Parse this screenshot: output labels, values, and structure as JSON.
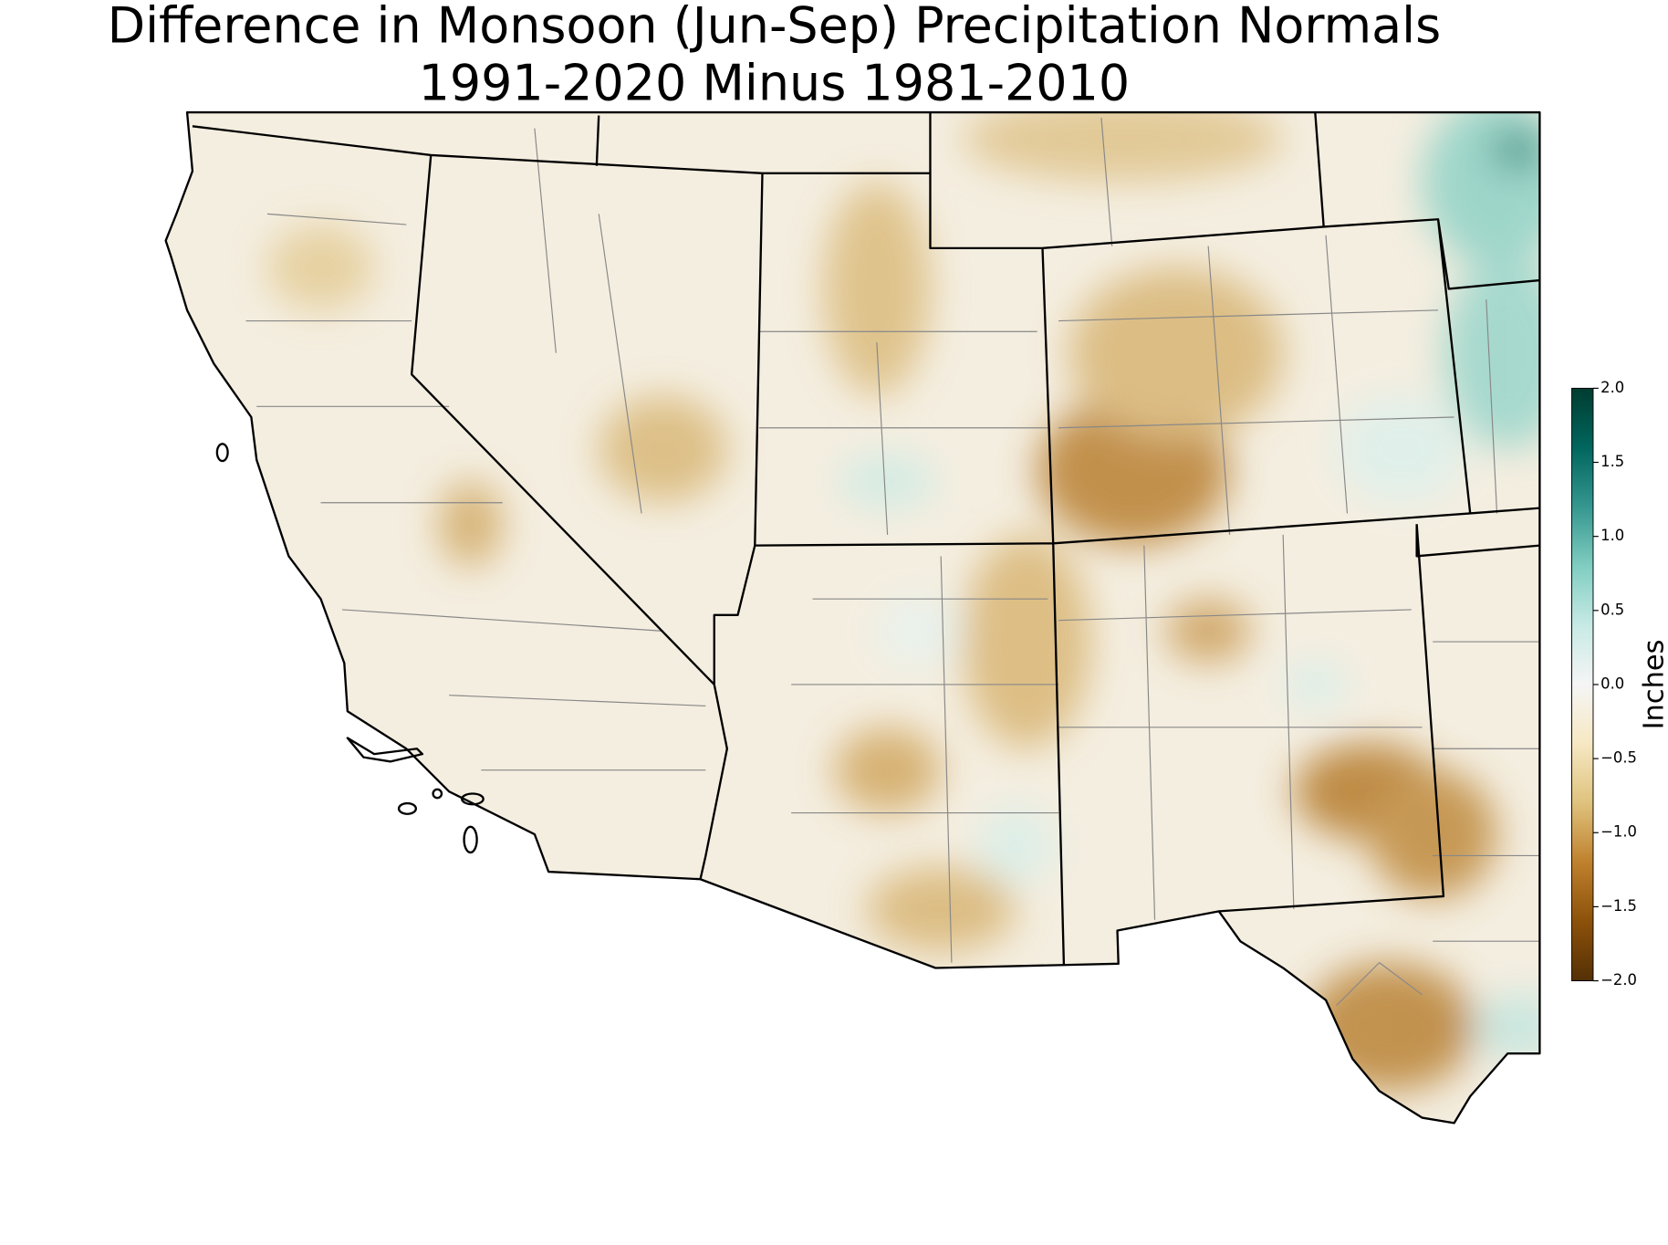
{
  "chart_data": {
    "type": "map",
    "title": [
      "Difference in Monsoon (Jun-Sep) Precipitation Normals",
      "1991-2020 Minus 1981-2010"
    ],
    "colorbar": {
      "label": "Inches",
      "lim": [
        -2,
        2
      ],
      "ticks": [
        {
          "value": 2,
          "label": "2.0"
        },
        {
          "value": 1.5,
          "label": "1.5"
        },
        {
          "value": 1,
          "label": "1.0"
        },
        {
          "value": 0.5,
          "label": "0.5"
        },
        {
          "value": 0,
          "label": "0.0"
        },
        {
          "value": -0.5,
          "label": "−0.5"
        },
        {
          "value": -1,
          "label": "−1.0"
        },
        {
          "value": -1.5,
          "label": "−1.5"
        },
        {
          "value": -2,
          "label": "−2.0"
        }
      ],
      "colors": [
        "#543005",
        "#8c510a",
        "#bf812d",
        "#dfc27d",
        "#f6e8c3",
        "#f5f5f5",
        "#c7eae5",
        "#80cdc1",
        "#35978f",
        "#01665e",
        "#003c30"
      ]
    }
  }
}
